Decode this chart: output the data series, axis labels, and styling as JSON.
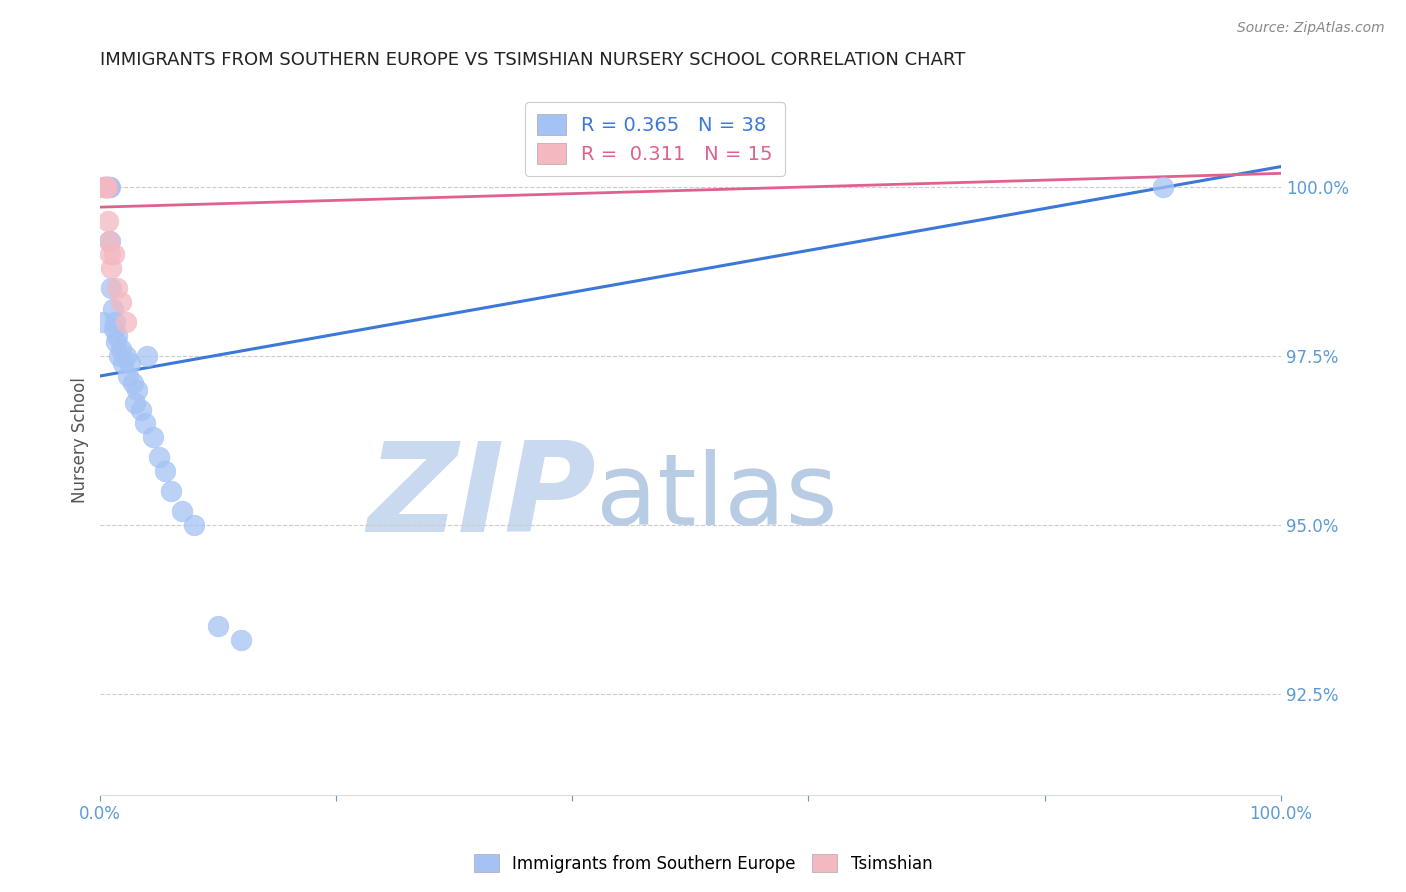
{
  "title": "IMMIGRANTS FROM SOUTHERN EUROPE VS TSIMSHIAN NURSERY SCHOOL CORRELATION CHART",
  "source": "Source: ZipAtlas.com",
  "ylabel": "Nursery School",
  "legend_blue_label": "Immigrants from Southern Europe",
  "legend_pink_label": "Tsimshian",
  "blue_R": 0.365,
  "blue_N": 38,
  "pink_R": 0.311,
  "pink_N": 15,
  "blue_color": "#a4c2f4",
  "pink_color": "#f4b8c1",
  "blue_line_color": "#3c78d8",
  "pink_line_color": "#e06090",
  "xmin": 0.0,
  "xmax": 100.0,
  "ymin": 91.0,
  "ymax": 101.5,
  "yticks": [
    92.5,
    95.0,
    97.5,
    100.0
  ],
  "xticks": [
    0.0,
    100.0
  ],
  "blue_x": [
    0.3,
    0.4,
    0.5,
    0.55,
    0.6,
    0.65,
    0.7,
    0.75,
    0.8,
    0.85,
    0.9,
    1.0,
    1.1,
    1.2,
    1.3,
    1.4,
    1.5,
    1.6,
    1.8,
    2.0,
    2.2,
    2.4,
    2.6,
    2.8,
    3.0,
    3.2,
    3.5,
    3.8,
    4.0,
    4.5,
    5.0,
    5.5,
    6.0,
    7.0,
    8.0,
    10.0,
    12.0,
    90.0
  ],
  "blue_y": [
    98.0,
    100.0,
    100.0,
    100.0,
    100.0,
    100.0,
    100.0,
    100.0,
    100.0,
    100.0,
    99.2,
    98.5,
    98.2,
    97.9,
    98.0,
    97.7,
    97.8,
    97.5,
    97.6,
    97.4,
    97.5,
    97.2,
    97.4,
    97.1,
    96.8,
    97.0,
    96.7,
    96.5,
    97.5,
    96.3,
    96.0,
    95.8,
    95.5,
    95.2,
    95.0,
    93.5,
    93.3,
    100.0
  ],
  "pink_x": [
    0.3,
    0.35,
    0.4,
    0.45,
    0.5,
    0.55,
    0.6,
    0.7,
    0.8,
    0.9,
    1.0,
    1.2,
    1.5,
    1.8,
    2.2
  ],
  "pink_y": [
    100.0,
    100.0,
    100.0,
    100.0,
    100.0,
    100.0,
    100.0,
    99.5,
    99.2,
    99.0,
    98.8,
    99.0,
    98.5,
    98.3,
    98.0
  ],
  "blue_line_x0": 0.0,
  "blue_line_y0": 97.2,
  "blue_line_x1": 100.0,
  "blue_line_y1": 100.3,
  "pink_line_x0": 0.0,
  "pink_line_y0": 99.7,
  "pink_line_x1": 100.0,
  "pink_line_y1": 100.2,
  "watermark_zip": "ZIP",
  "watermark_atlas": "atlas",
  "watermark_color_zip": "#c9d9f0",
  "watermark_color_atlas": "#b8cce4",
  "background_color": "#ffffff",
  "grid_color": "#cccccc",
  "tick_color": "#5b9bd5",
  "ylabel_color": "#555555",
  "title_color": "#222222",
  "source_color": "#888888"
}
